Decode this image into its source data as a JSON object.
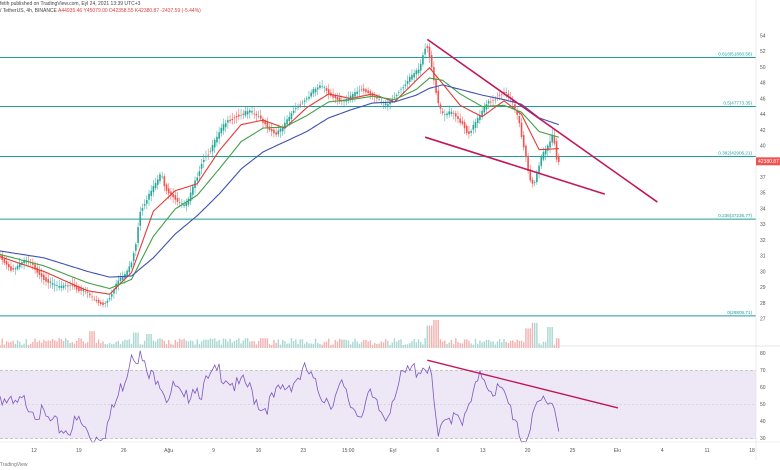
{
  "header": {
    "line1": "fetih published on TradingView.com, Eyl 24, 2021 13:39 UTC+3",
    "line2_prefix": "/ TetherUS, 4h, BINANCE",
    "ohlc": "A44935.46  Y45079.00  D42358.55  K42380.87  -2437.59 (-5.44%)"
  },
  "footer": {
    "logo_text": "TradingView"
  },
  "colors": {
    "fib": "#1f9e9e",
    "trend": "#c2185b",
    "up": "#26a69a",
    "down": "#ef5350",
    "ema_fast": "#e53935",
    "ema_mid": "#43a047",
    "ema_slow": "#3f51b5",
    "rsi_line": "#7e57c2",
    "rsi_band": "#ede7f6"
  },
  "chart_data": [
    {
      "type": "line",
      "title": "",
      "x_tick_labels": [
        "12",
        "19",
        "26",
        "Ağu",
        "9",
        "16",
        "23",
        "15:00",
        "Eyl",
        "6",
        "13",
        "20",
        "25",
        "Ekı",
        "4",
        "11",
        "18"
      ],
      "y_tick_labels": [
        "54",
        "52",
        "50",
        "48",
        "46",
        "44",
        "42",
        "40",
        "38",
        "37",
        "35",
        "34",
        "33",
        "32",
        "31",
        "30",
        "29",
        "28",
        "27"
      ],
      "current_price_label": "42380.87",
      "ylim": [
        26500,
        54800
      ],
      "series": [
        {
          "name": "",
          "values": [
            [
              0,
              34200
            ],
            [
              3,
              33400
            ],
            [
              6,
              32800
            ],
            [
              9,
              33200
            ],
            [
              12,
              33700
            ],
            [
              15,
              33300
            ],
            [
              18,
              32600
            ],
            [
              21,
              32000
            ],
            [
              24,
              31600
            ],
            [
              27,
              31400
            ],
            [
              30,
              31300
            ],
            [
              33,
              31600
            ],
            [
              36,
              31100
            ],
            [
              39,
              31000
            ],
            [
              42,
              30500
            ],
            [
              45,
              30000
            ],
            [
              48,
              29800
            ],
            [
              51,
              30600
            ],
            [
              54,
              31800
            ],
            [
              57,
              32300
            ],
            [
              60,
              33200
            ],
            [
              62,
              34800
            ],
            [
              63,
              35600
            ],
            [
              64,
              37800
            ],
            [
              66,
              38600
            ],
            [
              69,
              39600
            ],
            [
              72,
              40600
            ],
            [
              74,
              41300
            ],
            [
              76,
              40000
            ],
            [
              79,
              39400
            ],
            [
              81,
              39000
            ],
            [
              84,
              38500
            ],
            [
              86,
              38700
            ],
            [
              88,
              39800
            ],
            [
              90,
              40800
            ],
            [
              93,
              42500
            ],
            [
              96,
              43200
            ],
            [
              99,
              44300
            ],
            [
              102,
              45400
            ],
            [
              105,
              46000
            ],
            [
              108,
              46300
            ],
            [
              111,
              46500
            ],
            [
              114,
              46800
            ],
            [
              117,
              46500
            ],
            [
              120,
              46000
            ],
            [
              123,
              45300
            ],
            [
              126,
              44800
            ],
            [
              129,
              45200
            ],
            [
              132,
              46100
            ],
            [
              135,
              47000
            ],
            [
              138,
              47500
            ],
            [
              141,
              48000
            ],
            [
              144,
              48700
            ],
            [
              147,
              49000
            ],
            [
              150,
              48500
            ],
            [
              153,
              48000
            ],
            [
              156,
              47700
            ],
            [
              159,
              47800
            ],
            [
              162,
              48300
            ],
            [
              165,
              48700
            ],
            [
              168,
              48500
            ],
            [
              171,
              48100
            ],
            [
              174,
              47600
            ],
            [
              177,
              47300
            ],
            [
              180,
              47900
            ],
            [
              183,
              48700
            ],
            [
              186,
              49300
            ],
            [
              189,
              50000
            ],
            [
              192,
              50500
            ],
            [
              194,
              52000
            ],
            [
              195,
              52800
            ],
            [
              197,
              51200
            ],
            [
              199,
              49000
            ],
            [
              201,
              47000
            ],
            [
              203,
              46400
            ],
            [
              206,
              46700
            ],
            [
              209,
              46200
            ],
            [
              212,
              45600
            ],
            [
              214,
              44700
            ],
            [
              217,
              45600
            ],
            [
              220,
              46600
            ],
            [
              223,
              47500
            ],
            [
              226,
              47800
            ],
            [
              229,
              48300
            ],
            [
              231,
              48500
            ],
            [
              234,
              47700
            ],
            [
              237,
              46200
            ],
            [
              239,
              44100
            ],
            [
              241,
              42300
            ],
            [
              242,
              40900
            ],
            [
              244,
              40300
            ],
            [
              246,
              41700
            ],
            [
              248,
              42900
            ],
            [
              250,
              43500
            ],
            [
              252,
              44300
            ],
            [
              253,
              45000
            ],
            [
              254,
              43000
            ],
            [
              255,
              42380
            ]
          ]
        },
        {
          "name": "",
          "values": [
            [
              0,
              34000
            ],
            [
              20,
              32700
            ],
            [
              40,
              31000
            ],
            [
              50,
              30700
            ],
            [
              60,
              32600
            ],
            [
              70,
              38000
            ],
            [
              80,
              39800
            ],
            [
              90,
              40400
            ],
            [
              100,
              43300
            ],
            [
              110,
              45600
            ],
            [
              120,
              46000
            ],
            [
              130,
              45300
            ],
            [
              140,
              47100
            ],
            [
              150,
              48300
            ],
            [
              160,
              47900
            ],
            [
              170,
              48300
            ],
            [
              180,
              47600
            ],
            [
              190,
              49500
            ],
            [
              196,
              50600
            ],
            [
              202,
              49200
            ],
            [
              210,
              47300
            ],
            [
              220,
              46300
            ],
            [
              230,
              47700
            ],
            [
              238,
              46500
            ],
            [
              246,
              43400
            ],
            [
              255,
              43500
            ]
          ]
        },
        {
          "name": "",
          "values": [
            [
              0,
              34200
            ],
            [
              20,
              33200
            ],
            [
              40,
              31700
            ],
            [
              50,
              31200
            ],
            [
              60,
              32000
            ],
            [
              70,
              35800
            ],
            [
              80,
              38200
            ],
            [
              90,
              39400
            ],
            [
              100,
              41700
            ],
            [
              110,
              44100
            ],
            [
              120,
              45300
            ],
            [
              130,
              45400
            ],
            [
              140,
              46400
            ],
            [
              150,
              47600
            ],
            [
              160,
              47800
            ],
            [
              170,
              48100
            ],
            [
              180,
              47800
            ],
            [
              190,
              48700
            ],
            [
              196,
              49700
            ],
            [
              202,
              49500
            ],
            [
              210,
              48300
            ],
            [
              220,
              47200
            ],
            [
              230,
              47300
            ],
            [
              238,
              46700
            ],
            [
              246,
              45000
            ],
            [
              255,
              44500
            ]
          ]
        },
        {
          "name": "",
          "values": [
            [
              0,
              34500
            ],
            [
              20,
              33900
            ],
            [
              40,
              32700
            ],
            [
              50,
              32200
            ],
            [
              60,
              32300
            ],
            [
              70,
              33900
            ],
            [
              80,
              36000
            ],
            [
              90,
              37600
            ],
            [
              100,
              39500
            ],
            [
              110,
              41700
            ],
            [
              120,
              43200
            ],
            [
              130,
              44100
            ],
            [
              140,
              45000
            ],
            [
              150,
              46200
            ],
            [
              160,
              46900
            ],
            [
              170,
              47500
            ],
            [
              180,
              47600
            ],
            [
              190,
              48200
            ],
            [
              196,
              48800
            ],
            [
              202,
              49100
            ],
            [
              210,
              48700
            ],
            [
              220,
              48200
            ],
            [
              230,
              47800
            ],
            [
              238,
              47400
            ],
            [
              246,
              46200
            ],
            [
              255,
              45600
            ]
          ]
        }
      ],
      "fib_levels": [
        {
          "price": 51500,
          "label": "0.618(51860.58)"
        },
        {
          "price": 47200,
          "label": "0.5(47773.35)"
        },
        {
          "price": 42800,
          "label": "0.382(42906.21)"
        },
        {
          "price": 37300,
          "label": "0.236(37236.77)"
        },
        {
          "price": 28800,
          "label": "0(28805.71)"
        }
      ],
      "trendlines": [
        {
          "from": [
            195,
            53100
          ],
          "to": [
            300,
            38800
          ]
        },
        {
          "from": [
            194,
            44500
          ],
          "to": [
            276,
            39500
          ]
        }
      ],
      "volume_spikes": [
        [
          42,
          0.6
        ],
        [
          62,
          0.55
        ],
        [
          68,
          0.5
        ],
        [
          120,
          0.35
        ],
        [
          156,
          0.3
        ],
        [
          196,
          0.8
        ],
        [
          199,
          1.0
        ],
        [
          241,
          0.7
        ],
        [
          244,
          0.9
        ],
        [
          251,
          0.75
        ]
      ]
    },
    {
      "type": "line",
      "title": "",
      "y_tick_labels": [
        "80",
        "70",
        "60",
        "50",
        "40",
        "30"
      ],
      "ylim": [
        28,
        82
      ],
      "bands": [
        30,
        70
      ],
      "series": [
        {
          "name": "",
          "values": [
            [
              0,
              56
            ],
            [
              6,
              48
            ],
            [
              12,
              52
            ],
            [
              18,
              45
            ],
            [
              24,
              38
            ],
            [
              30,
              35
            ],
            [
              36,
              40
            ],
            [
              42,
              30
            ],
            [
              48,
              35
            ],
            [
              54,
              55
            ],
            [
              58,
              70
            ],
            [
              60,
              82
            ],
            [
              64,
              78
            ],
            [
              68,
              65
            ],
            [
              72,
              68
            ],
            [
              76,
              55
            ],
            [
              80,
              60
            ],
            [
              84,
              50
            ],
            [
              88,
              62
            ],
            [
              92,
              58
            ],
            [
              96,
              65
            ],
            [
              100,
              70
            ],
            [
              104,
              66
            ],
            [
              108,
              60
            ],
            [
              112,
              62
            ],
            [
              116,
              55
            ],
            [
              120,
              48
            ],
            [
              124,
              52
            ],
            [
              128,
              58
            ],
            [
              132,
              62
            ],
            [
              136,
              66
            ],
            [
              140,
              70
            ],
            [
              144,
              60
            ],
            [
              148,
              55
            ],
            [
              152,
              52
            ],
            [
              156,
              60
            ],
            [
              160,
              50
            ],
            [
              164,
              45
            ],
            [
              168,
              55
            ],
            [
              172,
              48
            ],
            [
              176,
              42
            ],
            [
              180,
              58
            ],
            [
              184,
              66
            ],
            [
              188,
              70
            ],
            [
              192,
              72
            ],
            [
              196,
              73
            ],
            [
              198,
              50
            ],
            [
              200,
              30
            ],
            [
              204,
              40
            ],
            [
              208,
              48
            ],
            [
              212,
              40
            ],
            [
              216,
              55
            ],
            [
              220,
              68
            ],
            [
              224,
              60
            ],
            [
              228,
              58
            ],
            [
              232,
              50
            ],
            [
              236,
              40
            ],
            [
              238,
              28
            ],
            [
              242,
              35
            ],
            [
              246,
              50
            ],
            [
              250,
              56
            ],
            [
              253,
              48
            ],
            [
              255,
              40
            ]
          ]
        }
      ],
      "trendline": {
        "from": [
          195,
          76
        ],
        "to": [
          282,
          48
        ]
      }
    }
  ]
}
